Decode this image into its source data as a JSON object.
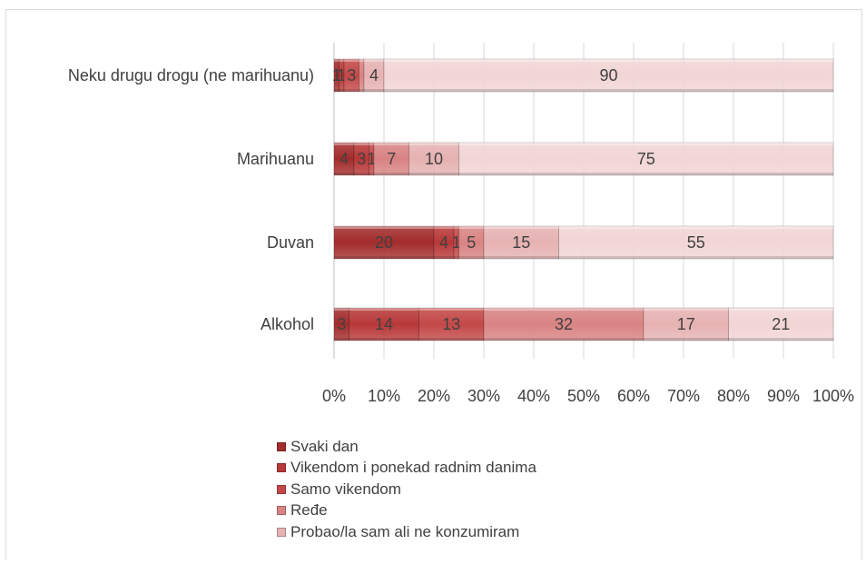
{
  "chart_data": {
    "type": "bar",
    "orientation": "horizontal",
    "stacked": "percent",
    "categories": [
      "Neku drugu drogu (ne marihuanu)",
      "Marihuanu",
      "Duvan",
      "Alkohol"
    ],
    "series": [
      {
        "name": "Svaki dan",
        "color": "#a32c2c",
        "values": [
          1,
          4,
          20,
          3
        ]
      },
      {
        "name": "Vikendom i ponekad radnim danima",
        "color": "#b83838",
        "values": [
          1,
          3,
          4,
          14
        ]
      },
      {
        "name": "Samo vikendom",
        "color": "#c44848",
        "values": [
          3,
          1,
          1,
          13
        ]
      },
      {
        "name": "Ređe",
        "color": "#d98383",
        "values": [
          1,
          7,
          5,
          32
        ]
      },
      {
        "name": "Probao/la sam ali ne konzumiram",
        "color": "#e6b2b2",
        "values": [
          4,
          10,
          15,
          17
        ]
      }
    ],
    "last_series": {
      "color": "#f2d5d5",
      "values": [
        90,
        75,
        55,
        21
      ]
    },
    "data_labels": [
      [
        "1",
        "1",
        "3",
        "",
        "4",
        "90"
      ],
      [
        "4",
        "3",
        "1",
        "7",
        "10",
        "75"
      ],
      [
        "20",
        "4",
        "1",
        "5",
        "15",
        "55"
      ],
      [
        "3",
        "14",
        "13",
        "32",
        "17",
        "21"
      ]
    ],
    "x_ticks": [
      "0%",
      "10%",
      "20%",
      "30%",
      "40%",
      "50%",
      "60%",
      "70%",
      "80%",
      "90%",
      "100%"
    ],
    "xlim": [
      0,
      100
    ],
    "grid": true,
    "legend_position": "bottom"
  }
}
